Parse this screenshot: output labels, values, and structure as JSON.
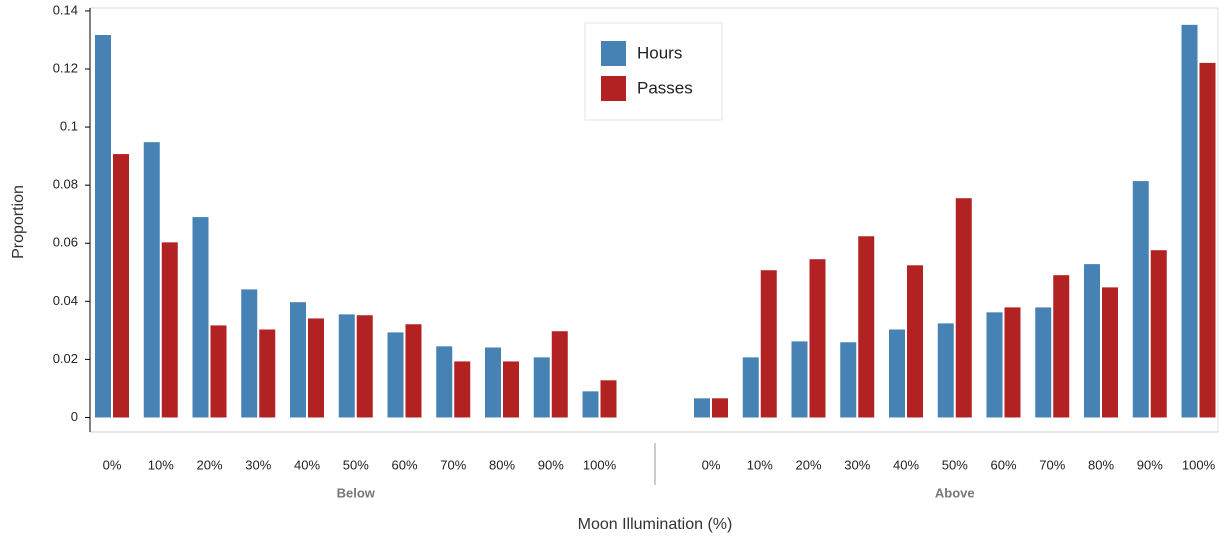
{
  "chart_data": {
    "type": "bar",
    "groups": [
      {
        "name": "Below",
        "categories": [
          "0%",
          "10%",
          "20%",
          "30%",
          "40%",
          "50%",
          "60%",
          "70%",
          "80%",
          "90%",
          "100%"
        ]
      },
      {
        "name": "Above",
        "categories": [
          "0%",
          "10%",
          "20%",
          "30%",
          "40%",
          "50%",
          "60%",
          "70%",
          "80%",
          "90%",
          "100%"
        ]
      }
    ],
    "series": [
      {
        "name": "Hours",
        "color": "#4682b4",
        "values": [
          [
            0.1317,
            0.0948,
            0.069,
            0.0441,
            0.0397,
            0.0355,
            0.0293,
            0.0245,
            0.0241,
            0.0207,
            0.009
          ],
          [
            0.0066,
            0.0207,
            0.0262,
            0.0259,
            0.0303,
            0.0324,
            0.0362,
            0.0379,
            0.0528,
            0.0814,
            0.1352
          ]
        ]
      },
      {
        "name": "Passes",
        "color": "#b22222",
        "values": [
          [
            0.0907,
            0.0603,
            0.0317,
            0.0303,
            0.0341,
            0.0352,
            0.0321,
            0.0193,
            0.0193,
            0.0297,
            0.0128
          ],
          [
            0.0066,
            0.0507,
            0.0545,
            0.0624,
            0.0524,
            0.0755,
            0.0379,
            0.049,
            0.0448,
            0.0576,
            0.1221
          ]
        ]
      }
    ],
    "x_label": "Moon Illumination (%)",
    "y_label": "Proportion",
    "ylim": [
      -0.005,
      0.141
    ],
    "yticks": [
      0,
      0.02,
      0.04,
      0.06,
      0.08,
      0.1,
      0.12,
      0.14
    ],
    "legend": "top-center"
  }
}
